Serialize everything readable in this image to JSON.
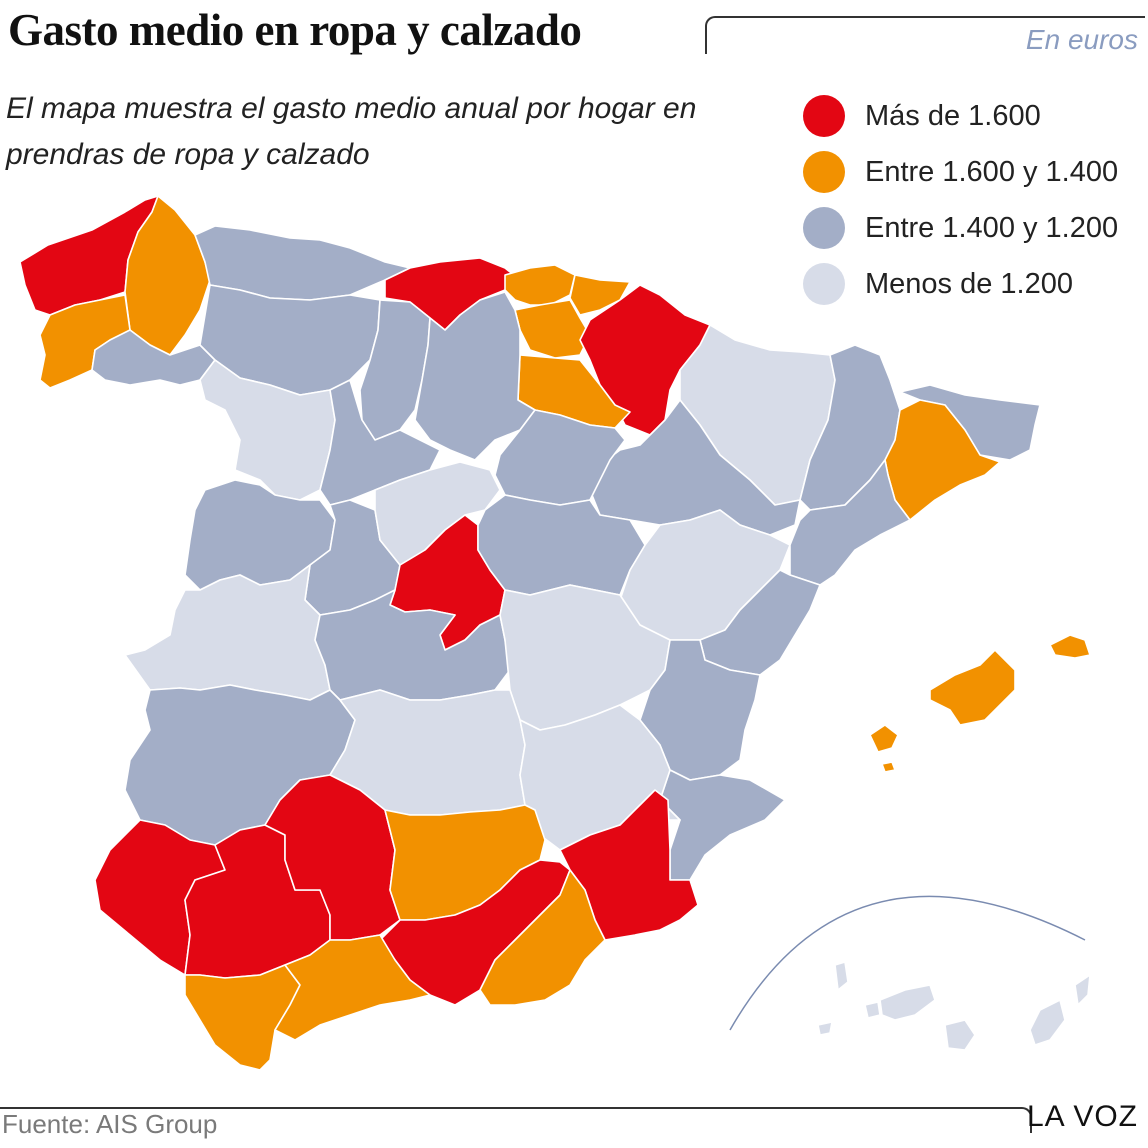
{
  "header": {
    "title": "Gasto medio en ropa y calzado",
    "unit": "En euros",
    "subtitle": "El mapa muestra el gasto medio anual por hogar en prendras de ropa y calzado"
  },
  "legend": [
    {
      "label": "Más de 1.600",
      "color": "#e30613"
    },
    {
      "label": "Entre 1.600 y 1.400",
      "color": "#f29100"
    },
    {
      "label": "Entre 1.400 y 1.200",
      "color": "#a3aec7"
    },
    {
      "label": "Menos de 1.200",
      "color": "#d7dce8"
    }
  ],
  "footer": {
    "source": "Fuente: AIS Group",
    "brand": "LA VOZ"
  },
  "map_data": {
    "categories": {
      "gt1600": "Más de 1.600",
      "1400_1600": "Entre 1.600 y 1.400",
      "1200_1400": "Entre 1.400 y 1.200",
      "lt1200": "Menos de 1.200"
    },
    "provinces": [
      {
        "id": "a-coruna",
        "category": "gt1600"
      },
      {
        "id": "lugo",
        "category": "1400_1600"
      },
      {
        "id": "pontevedra",
        "category": "1400_1600"
      },
      {
        "id": "ourense",
        "category": "1200_1400"
      },
      {
        "id": "asturias",
        "category": "1200_1400"
      },
      {
        "id": "cantabria",
        "category": "gt1600"
      },
      {
        "id": "bizkaia",
        "category": "1400_1600"
      },
      {
        "id": "gipuzkoa",
        "category": "1400_1600"
      },
      {
        "id": "alava",
        "category": "1400_1600"
      },
      {
        "id": "navarra",
        "category": "gt1600"
      },
      {
        "id": "la-rioja",
        "category": "1400_1600"
      },
      {
        "id": "huesca",
        "category": "lt1200"
      },
      {
        "id": "zaragoza",
        "category": "1200_1400"
      },
      {
        "id": "teruel",
        "category": "lt1200"
      },
      {
        "id": "lleida",
        "category": "1200_1400"
      },
      {
        "id": "girona",
        "category": "1200_1400"
      },
      {
        "id": "barcelona",
        "category": "1400_1600"
      },
      {
        "id": "tarragona",
        "category": "1200_1400"
      },
      {
        "id": "leon",
        "category": "1200_1400"
      },
      {
        "id": "palencia",
        "category": "1200_1400"
      },
      {
        "id": "burgos",
        "category": "1200_1400"
      },
      {
        "id": "zamora",
        "category": "lt1200"
      },
      {
        "id": "valladolid",
        "category": "1200_1400"
      },
      {
        "id": "soria",
        "category": "1200_1400"
      },
      {
        "id": "salamanca",
        "category": "1200_1400"
      },
      {
        "id": "avila",
        "category": "1200_1400"
      },
      {
        "id": "segovia",
        "category": "lt1200"
      },
      {
        "id": "madrid",
        "category": "gt1600"
      },
      {
        "id": "guadalajara",
        "category": "1200_1400"
      },
      {
        "id": "caceres",
        "category": "lt1200"
      },
      {
        "id": "toledo",
        "category": "1200_1400"
      },
      {
        "id": "cuenca",
        "category": "lt1200"
      },
      {
        "id": "castellon",
        "category": "1200_1400"
      },
      {
        "id": "valencia",
        "category": "1200_1400"
      },
      {
        "id": "badajoz",
        "category": "1200_1400"
      },
      {
        "id": "ciudad-real",
        "category": "lt1200"
      },
      {
        "id": "albacete",
        "category": "lt1200"
      },
      {
        "id": "alicante",
        "category": "1200_1400"
      },
      {
        "id": "huelva",
        "category": "gt1600"
      },
      {
        "id": "sevilla",
        "category": "gt1600"
      },
      {
        "id": "cordoba",
        "category": "gt1600"
      },
      {
        "id": "jaen",
        "category": "1400_1600"
      },
      {
        "id": "murcia",
        "category": "gt1600"
      },
      {
        "id": "granada",
        "category": "gt1600"
      },
      {
        "id": "almeria",
        "category": "1400_1600"
      },
      {
        "id": "cadiz",
        "category": "1400_1600"
      },
      {
        "id": "malaga",
        "category": "1400_1600"
      },
      {
        "id": "baleares",
        "category": "1400_1600"
      },
      {
        "id": "canarias",
        "category": "lt1200"
      }
    ]
  }
}
